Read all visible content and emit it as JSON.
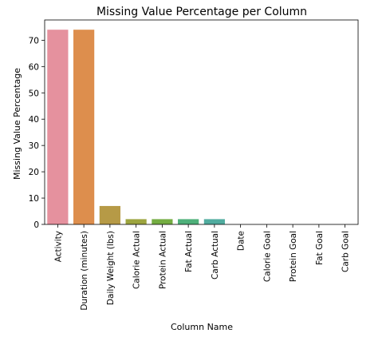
{
  "chart_data": {
    "type": "bar",
    "title": "Missing Value Percentage per Column",
    "xlabel": "Column Name",
    "ylabel": "Missing Value Percentage",
    "categories": [
      "Activity",
      "Duration (minutes)",
      "Daily Weight (lbs)",
      "Calorie Actual",
      "Protein Actual",
      "Fat Actual",
      "Carb Actual",
      "Date",
      "Calorie Goal",
      "Protein Goal",
      "Fat Goal",
      "Carb Goal"
    ],
    "values": [
      74,
      74,
      7,
      2,
      2,
      2,
      2,
      0,
      0,
      0,
      0,
      0
    ],
    "yticks": [
      0,
      10,
      20,
      30,
      40,
      50,
      60,
      70
    ],
    "ylim": [
      0,
      77.7
    ],
    "grid": false,
    "colors": [
      "#e5919e",
      "#dd8e4d",
      "#b69a46",
      "#9da53f",
      "#74ad42",
      "#4eb07a",
      "#50ac9f",
      "#52a9b6",
      "#5aa6d5",
      "#a29de6",
      "#d88fe4",
      "#e68fc2"
    ]
  }
}
